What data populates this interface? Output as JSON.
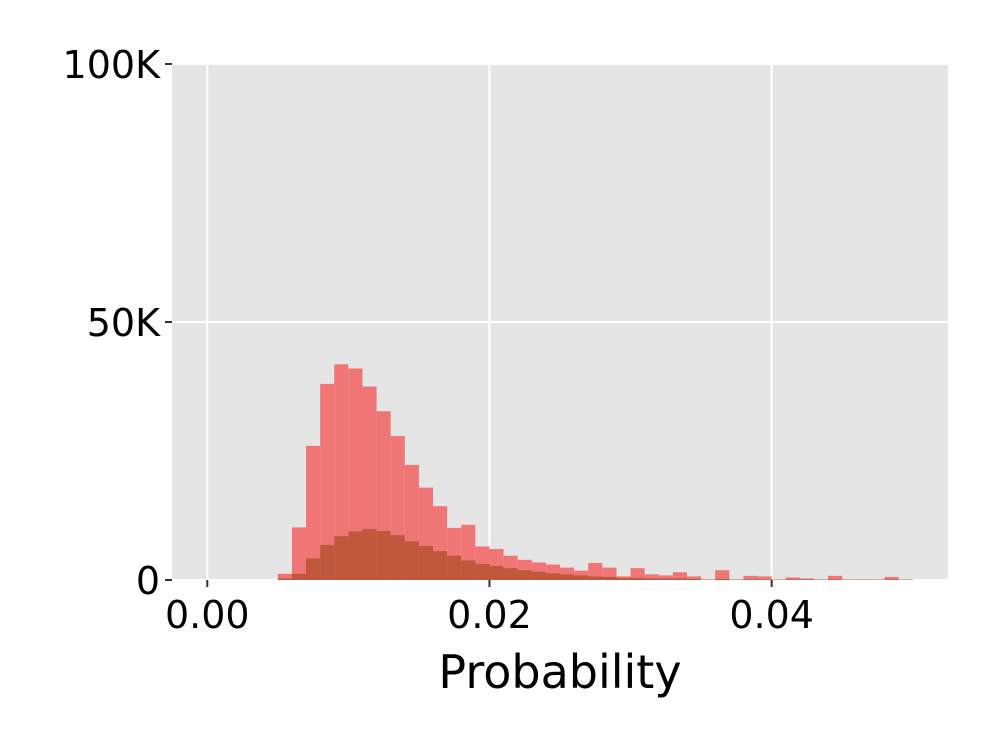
{
  "chart_data": {
    "type": "bar",
    "xlabel": "Probability",
    "ylabel": "",
    "xlim": [
      -0.0025,
      0.0525
    ],
    "ylim": [
      0,
      100000
    ],
    "grid": true,
    "xticks": [
      0.0,
      0.02,
      0.04
    ],
    "xtick_labels": [
      "0.00",
      "0.02",
      "0.04"
    ],
    "yticks": [
      0,
      50000,
      100000
    ],
    "ytick_labels": [
      "0",
      "50K",
      "100K"
    ],
    "bin_width": 0.001,
    "bin_starts": [
      0.005,
      0.006,
      0.007,
      0.008,
      0.009,
      0.01,
      0.011,
      0.012,
      0.013,
      0.014,
      0.015,
      0.016,
      0.017,
      0.018,
      0.019,
      0.02,
      0.021,
      0.022,
      0.023,
      0.024,
      0.025,
      0.026,
      0.027,
      0.028,
      0.029,
      0.03,
      0.031,
      0.032,
      0.033,
      0.034,
      0.035,
      0.036,
      0.037,
      0.038,
      0.039,
      0.04,
      0.041,
      0.042,
      0.043,
      0.044,
      0.045,
      0.046,
      0.047,
      0.048,
      0.049
    ],
    "series": [
      {
        "color": "#f07070",
        "values": [
          1200,
          10200,
          26000,
          38000,
          41800,
          41000,
          37500,
          32700,
          27900,
          22300,
          17900,
          14300,
          10100,
          10700,
          6500,
          6000,
          4700,
          3900,
          3400,
          3000,
          2400,
          1800,
          3300,
          2400,
          700,
          2300,
          1100,
          900,
          1500,
          700,
          100,
          1900,
          100,
          800,
          700,
          100,
          500,
          300,
          100,
          800,
          100,
          100,
          100,
          600,
          100
        ]
      },
      {
        "color": "#bb5538",
        "values": [
          300,
          1200,
          4200,
          6800,
          8500,
          9400,
          9900,
          9500,
          8700,
          7500,
          6600,
          5600,
          4700,
          3800,
          3100,
          2700,
          2300,
          1900,
          1600,
          1300,
          1100,
          900,
          700,
          600,
          400,
          400,
          300,
          300,
          300,
          200,
          100,
          200,
          100,
          100,
          100,
          100,
          100,
          100,
          100,
          100,
          100,
          100,
          100,
          100,
          100
        ]
      }
    ]
  }
}
